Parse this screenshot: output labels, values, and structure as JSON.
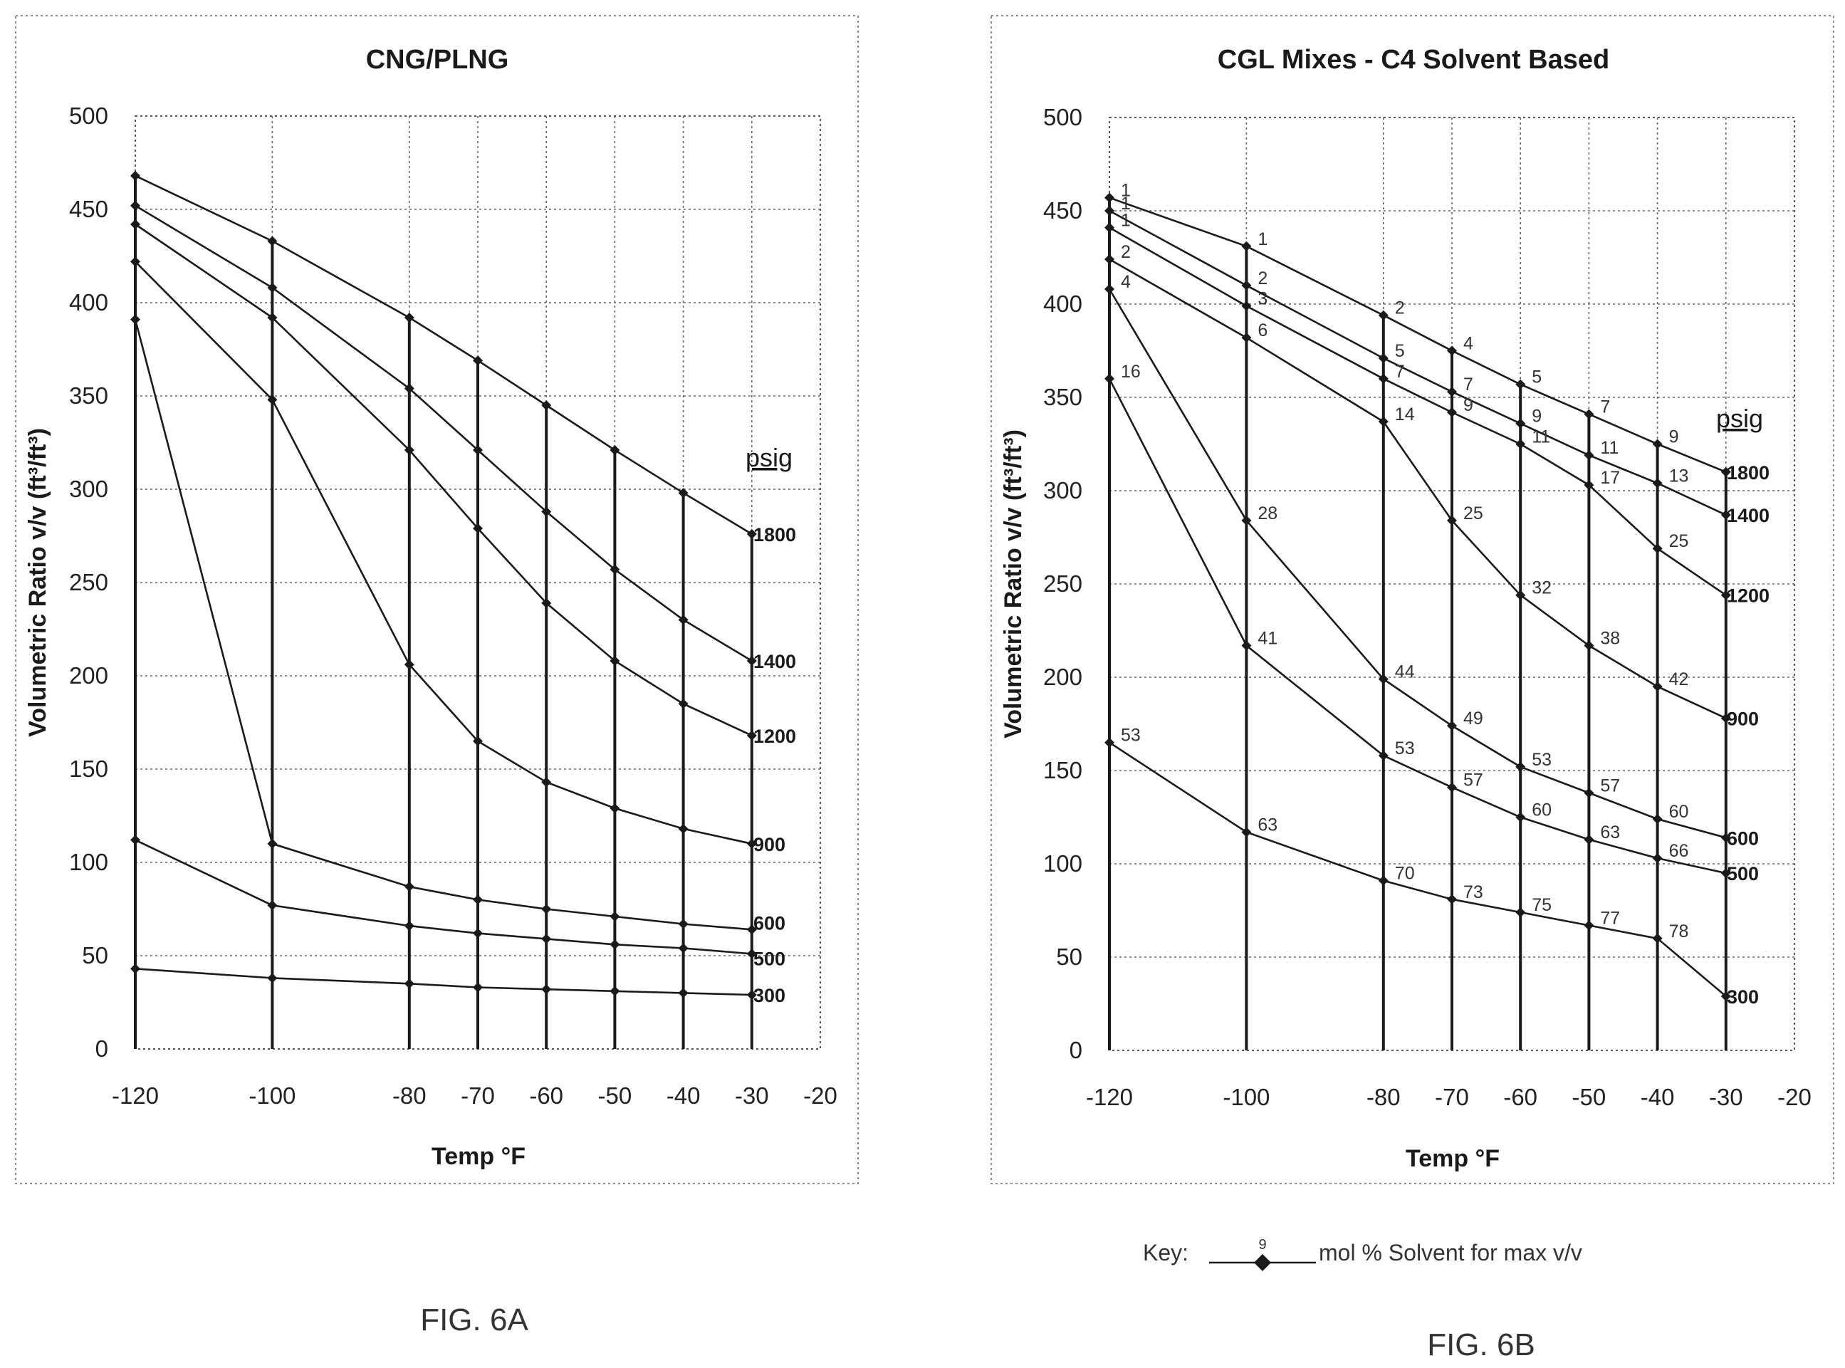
{
  "chart_data": [
    {
      "id": "fig6a",
      "type": "line",
      "title": "CNG/PLNG",
      "xlabel": "Temp °F",
      "ylabel": "Volumetric Ratio v/v (ft³/ft³)",
      "xlim": [
        -120,
        -20
      ],
      "ylim": [
        0,
        500
      ],
      "xticks": [
        -120,
        -100,
        -80,
        -70,
        -60,
        -50,
        -40,
        -30,
        -20
      ],
      "yticks": [
        0,
        50,
        100,
        150,
        200,
        250,
        300,
        350,
        400,
        450,
        500
      ],
      "grid": true,
      "legend_title": "psig",
      "caption": "FIG. 6A",
      "x": [
        -120,
        -100,
        -80,
        -70,
        -60,
        -50,
        -40,
        -30
      ],
      "series": [
        {
          "name": "1800",
          "values": [
            468,
            433,
            392,
            369,
            345,
            321,
            298,
            276
          ]
        },
        {
          "name": "1400",
          "values": [
            452,
            408,
            354,
            321,
            288,
            257,
            230,
            208
          ]
        },
        {
          "name": "1200",
          "values": [
            442,
            392,
            321,
            279,
            239,
            208,
            185,
            168
          ]
        },
        {
          "name": "900",
          "values": [
            422,
            348,
            206,
            165,
            143,
            129,
            118,
            110
          ]
        },
        {
          "name": "600",
          "values": [
            391,
            110,
            87,
            80,
            75,
            71,
            67,
            64
          ]
        },
        {
          "name": "500",
          "values": [
            112,
            77,
            66,
            62,
            59,
            56,
            54,
            51
          ]
        },
        {
          "name": "300",
          "values": [
            43,
            38,
            35,
            33,
            32,
            31,
            30,
            29
          ]
        }
      ]
    },
    {
      "id": "fig6b",
      "type": "line",
      "title": "CGL Mixes - C4 Solvent Based",
      "xlabel": "Temp °F",
      "ylabel": "Volumetric Ratio v/v (ft³/ft³)",
      "xlim": [
        -120,
        -20
      ],
      "ylim": [
        0,
        500
      ],
      "xticks": [
        -120,
        -100,
        -80,
        -70,
        -60,
        -50,
        -40,
        -30,
        -20
      ],
      "yticks": [
        0,
        50,
        100,
        150,
        200,
        250,
        300,
        350,
        400,
        450,
        500
      ],
      "grid": true,
      "legend_title": "psig",
      "caption": "FIG. 6B",
      "key": {
        "label": "Key:",
        "sample_value": "9",
        "text": "mol % Solvent for max v/v"
      },
      "x": [
        -120,
        -100,
        -80,
        -70,
        -60,
        -50,
        -40,
        -30
      ],
      "series": [
        {
          "name": "1800",
          "values": [
            457,
            431,
            394,
            375,
            357,
            341,
            325,
            310
          ],
          "point_labels": [
            "1",
            "1",
            "2",
            "4",
            "5",
            "7",
            "9",
            ""
          ]
        },
        {
          "name": "1400",
          "values": [
            450,
            410,
            371,
            353,
            336,
            319,
            304,
            287
          ],
          "point_labels": [
            "1",
            "2",
            "5",
            "7",
            "9",
            "11",
            "13",
            ""
          ]
        },
        {
          "name": "1200",
          "values": [
            441,
            399,
            360,
            342,
            325,
            303,
            269,
            244
          ],
          "point_labels": [
            "1",
            "3",
            "7",
            "9",
            "11",
            "17",
            "25",
            ""
          ]
        },
        {
          "name": "900",
          "values": [
            424,
            382,
            337,
            284,
            244,
            217,
            195,
            178
          ],
          "point_labels": [
            "2",
            "6",
            "14",
            "25",
            "32",
            "38",
            "42",
            ""
          ]
        },
        {
          "name": "600",
          "values": [
            408,
            284,
            199,
            174,
            152,
            138,
            124,
            114
          ],
          "point_labels": [
            "4",
            "28",
            "44",
            "49",
            "53",
            "57",
            "60",
            ""
          ]
        },
        {
          "name": "500",
          "values": [
            360,
            217,
            158,
            141,
            125,
            113,
            103,
            95
          ],
          "point_labels": [
            "16",
            "41",
            "53",
            "57",
            "60",
            "63",
            "66",
            ""
          ]
        },
        {
          "name": "300",
          "values": [
            165,
            117,
            91,
            81,
            74,
            67,
            60,
            29
          ],
          "point_labels": [
            "53",
            "63",
            "70",
            "73",
            "75",
            "77",
            "78",
            ""
          ]
        }
      ]
    }
  ]
}
